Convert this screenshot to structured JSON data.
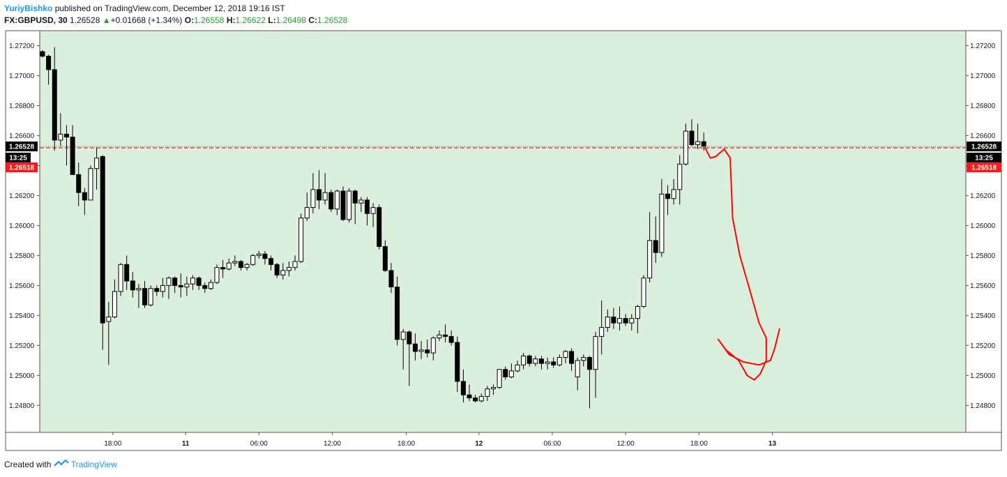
{
  "header": {
    "author": "YuriyBishko",
    "published_text": "published on TradingView.com, December 12, 2018 19:16 IST",
    "symbol": "FX:GBPUSD, 30",
    "last": "1.26528",
    "change": "+0.01668 (+1.34%)",
    "o_label": "O:",
    "o_value": "1.26558",
    "h_label": "H:",
    "h_value": "1.26622",
    "l_label": "L:",
    "l_value": "1.26498",
    "c_label": "C:",
    "c_value": "1.26528"
  },
  "footer": {
    "created_with": "Created with",
    "brand": "TradingView"
  },
  "chart_data": {
    "type": "candlestick",
    "background": "#dcefdc",
    "ylim": [
      1.2462,
      1.273
    ],
    "y_ticks": [
      "1.27200",
      "1.27000",
      "1.26800",
      "1.26600",
      "1.26400",
      "1.26200",
      "1.26000",
      "1.25800",
      "1.25600",
      "1.25400",
      "1.25200",
      "1.25000",
      "1.24800"
    ],
    "x_ticks": [
      {
        "label": "18:00",
        "bar": 11.7,
        "bold": false
      },
      {
        "label": "11",
        "bar": 23.8,
        "bold": true
      },
      {
        "label": "06:00",
        "bar": 36.0,
        "bold": false
      },
      {
        "label": "12:00",
        "bar": 48.2,
        "bold": false
      },
      {
        "label": "18:00",
        "bar": 60.5,
        "bold": false
      },
      {
        "label": "12",
        "bar": 72.6,
        "bold": true
      },
      {
        "label": "06:00",
        "bar": 84.8,
        "bold": false
      },
      {
        "label": "12:00",
        "bar": 97.0,
        "bold": false
      },
      {
        "label": "18:00",
        "bar": 109.2,
        "bold": false
      },
      {
        "label": "13",
        "bar": 121.4,
        "bold": true
      }
    ],
    "candles": [
      [
        1.2716,
        1.2717,
        1.2712,
        1.2713
      ],
      [
        1.2713,
        1.2714,
        1.2694,
        1.2704
      ],
      [
        1.2704,
        1.2719,
        1.265,
        1.2657
      ],
      [
        1.2657,
        1.2675,
        1.2653,
        1.2661
      ],
      [
        1.2661,
        1.2667,
        1.264,
        1.2659
      ],
      [
        1.2659,
        1.2667,
        1.2634,
        1.2634
      ],
      [
        1.2634,
        1.2642,
        1.2613,
        1.2622
      ],
      [
        1.2622,
        1.2625,
        1.2607,
        1.2617
      ],
      [
        1.2617,
        1.264,
        1.2617,
        1.2638
      ],
      [
        1.2638,
        1.2652,
        1.2624,
        1.2645
      ],
      [
        1.2646,
        1.2647,
        1.2517,
        1.2535
      ],
      [
        1.2536,
        1.2549,
        1.2507,
        1.2539
      ],
      [
        1.2539,
        1.2564,
        1.2538,
        1.2556
      ],
      [
        1.2556,
        1.2575,
        1.2553,
        1.2574
      ],
      [
        1.2574,
        1.258,
        1.2557,
        1.2563
      ],
      [
        1.2563,
        1.2569,
        1.2552,
        1.2557
      ],
      [
        1.2557,
        1.2561,
        1.2545,
        1.2558
      ],
      [
        1.2558,
        1.2563,
        1.2545,
        1.2547
      ],
      [
        1.2547,
        1.256,
        1.2546,
        1.2558
      ],
      [
        1.2558,
        1.256,
        1.2553,
        1.2556
      ],
      [
        1.2556,
        1.2565,
        1.2552,
        1.256
      ],
      [
        1.256,
        1.2566,
        1.2551,
        1.2565
      ],
      [
        1.2565,
        1.2566,
        1.2555,
        1.256
      ],
      [
        1.256,
        1.2568,
        1.2552,
        1.2559
      ],
      [
        1.2559,
        1.2566,
        1.2553,
        1.2561
      ],
      [
        1.2561,
        1.2567,
        1.2557,
        1.2565
      ],
      [
        1.2565,
        1.2566,
        1.2557,
        1.256
      ],
      [
        1.256,
        1.2562,
        1.2555,
        1.2558
      ],
      [
        1.2558,
        1.2564,
        1.2557,
        1.2562
      ],
      [
        1.2562,
        1.2574,
        1.2561,
        1.2572
      ],
      [
        1.2572,
        1.2577,
        1.2565,
        1.2571
      ],
      [
        1.2571,
        1.2578,
        1.257,
        1.2575
      ],
      [
        1.2575,
        1.258,
        1.2573,
        1.2576
      ],
      [
        1.2576,
        1.2577,
        1.257,
        1.2572
      ],
      [
        1.2572,
        1.2575,
        1.257,
        1.2574
      ],
      [
        1.2574,
        1.2581,
        1.2573,
        1.258
      ],
      [
        1.258,
        1.2583,
        1.2578,
        1.2581
      ],
      [
        1.2581,
        1.2583,
        1.2574,
        1.2578
      ],
      [
        1.2578,
        1.258,
        1.257,
        1.2574
      ],
      [
        1.2574,
        1.2575,
        1.2565,
        1.2567
      ],
      [
        1.2567,
        1.2575,
        1.2564,
        1.257
      ],
      [
        1.257,
        1.2576,
        1.2566,
        1.2572
      ],
      [
        1.2572,
        1.258,
        1.257,
        1.2576
      ],
      [
        1.2576,
        1.2608,
        1.2575,
        1.2605
      ],
      [
        1.2605,
        1.2622,
        1.2603,
        1.2612
      ],
      [
        1.2612,
        1.2635,
        1.2608,
        1.2624
      ],
      [
        1.2624,
        1.2637,
        1.2611,
        1.2617
      ],
      [
        1.2617,
        1.2635,
        1.2614,
        1.2622
      ],
      [
        1.2622,
        1.2624,
        1.2609,
        1.2611
      ],
      [
        1.2611,
        1.2624,
        1.2607,
        1.2623
      ],
      [
        1.2623,
        1.2626,
        1.2603,
        1.2604
      ],
      [
        1.2604,
        1.2625,
        1.2602,
        1.2623
      ],
      [
        1.2623,
        1.2624,
        1.2601,
        1.2615
      ],
      [
        1.2615,
        1.2619,
        1.2609,
        1.2617
      ],
      [
        1.2617,
        1.2619,
        1.26,
        1.2608
      ],
      [
        1.2608,
        1.2615,
        1.2599,
        1.2612
      ],
      [
        1.2612,
        1.2614,
        1.2584,
        1.2586
      ],
      [
        1.2586,
        1.259,
        1.2569,
        1.257
      ],
      [
        1.257,
        1.2575,
        1.2555,
        1.2559
      ],
      [
        1.2559,
        1.2566,
        1.252,
        1.2524
      ],
      [
        1.2524,
        1.2531,
        1.2504,
        1.2529
      ],
      [
        1.2529,
        1.253,
        1.2493,
        1.2521
      ],
      [
        1.2521,
        1.2528,
        1.251,
        1.2516
      ],
      [
        1.2516,
        1.2523,
        1.2511,
        1.2517
      ],
      [
        1.2517,
        1.2524,
        1.2512,
        1.2515
      ],
      [
        1.2515,
        1.2526,
        1.251,
        1.2525
      ],
      [
        1.2525,
        1.253,
        1.2523,
        1.2527
      ],
      [
        1.2527,
        1.2534,
        1.2522,
        1.2526
      ],
      [
        1.2526,
        1.253,
        1.252,
        1.2522
      ],
      [
        1.2522,
        1.2526,
        1.2489,
        1.2496
      ],
      [
        1.2496,
        1.2504,
        1.2482,
        1.2487
      ],
      [
        1.2487,
        1.2494,
        1.2483,
        1.2485
      ],
      [
        1.2485,
        1.2487,
        1.2482,
        1.2483
      ],
      [
        1.2483,
        1.2488,
        1.2482,
        1.2486
      ],
      [
        1.2486,
        1.2493,
        1.2483,
        1.2491
      ],
      [
        1.2491,
        1.2494,
        1.2487,
        1.2492
      ],
      [
        1.2492,
        1.2504,
        1.2491,
        1.2504
      ],
      [
        1.2504,
        1.2506,
        1.2497,
        1.2499
      ],
      [
        1.2499,
        1.2508,
        1.2498,
        1.2503
      ],
      [
        1.2503,
        1.251,
        1.2502,
        1.2507
      ],
      [
        1.2507,
        1.2515,
        1.2504,
        1.2513
      ],
      [
        1.2513,
        1.2514,
        1.2506,
        1.2508
      ],
      [
        1.2508,
        1.2513,
        1.2506,
        1.2511
      ],
      [
        1.2511,
        1.2513,
        1.2504,
        1.2508
      ],
      [
        1.2508,
        1.2512,
        1.2504,
        1.2509
      ],
      [
        1.2509,
        1.2512,
        1.2505,
        1.2507
      ],
      [
        1.2507,
        1.2514,
        1.2506,
        1.2512
      ],
      [
        1.2512,
        1.2517,
        1.2508,
        1.2516
      ],
      [
        1.2516,
        1.2518,
        1.2503,
        1.2508
      ],
      [
        1.2499,
        1.2512,
        1.249,
        1.251
      ],
      [
        1.251,
        1.2514,
        1.2506,
        1.2512
      ],
      [
        1.2512,
        1.2513,
        1.2478,
        1.2504
      ],
      [
        1.2504,
        1.2529,
        1.2485,
        1.2526
      ],
      [
        1.2526,
        1.255,
        1.2514,
        1.2532
      ],
      [
        1.2532,
        1.2544,
        1.2529,
        1.2539
      ],
      [
        1.2539,
        1.2545,
        1.2531,
        1.2535
      ],
      [
        1.2535,
        1.2546,
        1.253,
        1.2538
      ],
      [
        1.2538,
        1.2541,
        1.2533,
        1.2535
      ],
      [
        1.2535,
        1.2541,
        1.253,
        1.2538
      ],
      [
        1.2538,
        1.2547,
        1.2528,
        1.2546
      ],
      [
        1.2546,
        1.2567,
        1.2545,
        1.2565
      ],
      [
        1.2565,
        1.2609,
        1.2562,
        1.259
      ],
      [
        1.259,
        1.2606,
        1.2575,
        1.2582
      ],
      [
        1.2582,
        1.2631,
        1.2579,
        1.2621
      ],
      [
        1.2621,
        1.2627,
        1.2607,
        1.2618
      ],
      [
        1.2618,
        1.2631,
        1.2614,
        1.2624
      ],
      [
        1.2624,
        1.2647,
        1.2614,
        1.2641
      ],
      [
        1.2641,
        1.2668,
        1.264,
        1.2663
      ],
      [
        1.2663,
        1.2671,
        1.2653,
        1.2654
      ],
      [
        1.2654,
        1.2668,
        1.2651,
        1.2656
      ],
      [
        1.2656,
        1.2662,
        1.265,
        1.2653
      ]
    ],
    "current_price": 1.26528,
    "current_label": "1.26528",
    "countdown_label": "13:25",
    "red_level": 1.26518,
    "red_label": "1.26518",
    "projection_path": [
      [
        110.2,
        1.2652
      ],
      [
        111.1,
        1.2645
      ],
      [
        112.0,
        1.2646
      ],
      [
        113.4,
        1.2651
      ],
      [
        114.4,
        1.2645
      ],
      [
        114.8,
        1.2605
      ],
      [
        116.0,
        1.258
      ],
      [
        117.8,
        1.2555
      ],
      [
        119.2,
        1.2535
      ],
      [
        120.4,
        1.2525
      ],
      [
        120.4,
        1.251
      ],
      [
        119.4,
        1.2501
      ],
      [
        118.4,
        1.2497
      ],
      [
        117.2,
        1.25
      ],
      [
        115.8,
        1.251
      ],
      [
        113.7,
        1.2517
      ],
      [
        112.4,
        1.2524
      ],
      [
        114.2,
        1.2514
      ],
      [
        116.6,
        1.2509
      ],
      [
        119.2,
        1.2507
      ],
      [
        121.1,
        1.251
      ],
      [
        121.8,
        1.2518
      ],
      [
        122.6,
        1.2531
      ]
    ],
    "colors": {
      "up_body": "#ffffff",
      "down_body": "#000000",
      "wick": "#000000",
      "projection": "#ff0000",
      "red_line": "#ff0000",
      "price_line": "#2d7a7a"
    }
  }
}
